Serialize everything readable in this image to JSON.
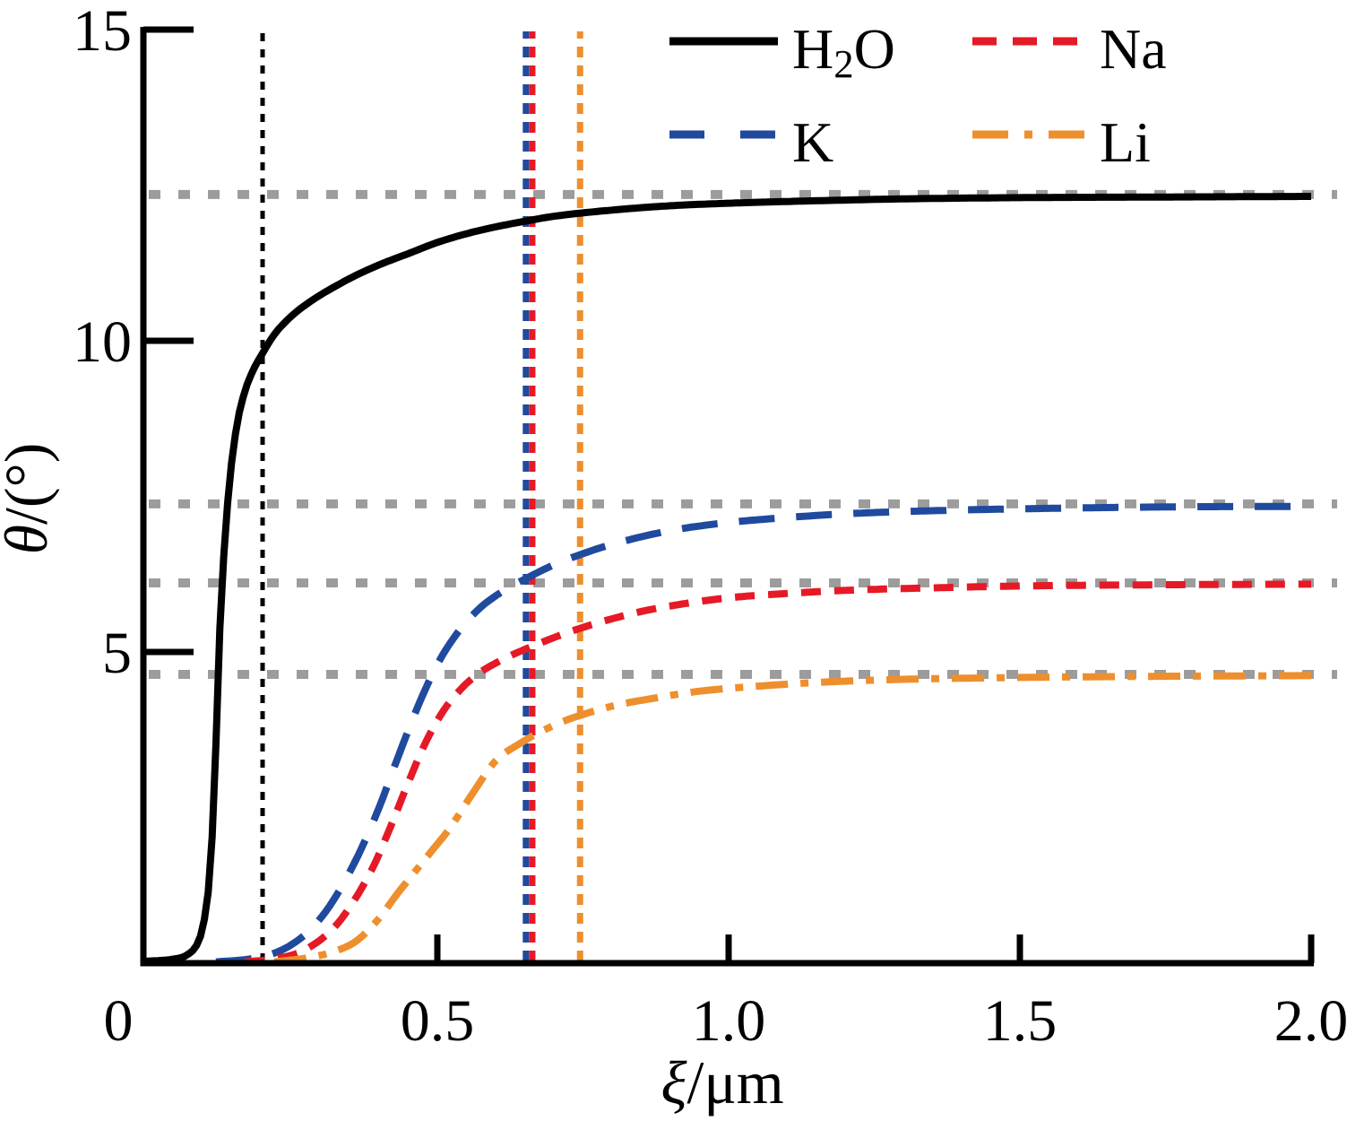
{
  "chart_data": {
    "type": "line",
    "title": "",
    "xlabel_symbol": "ξ",
    "xlabel_rest": "/μm",
    "ylabel_symbol": "θ",
    "ylabel_rest": "/(°)",
    "xlim": [
      0,
      2.0
    ],
    "ylim": [
      0,
      15
    ],
    "x_ticks": [
      {
        "value": 0,
        "label": "0"
      },
      {
        "value": 0.5,
        "label": "0.5"
      },
      {
        "value": 1.0,
        "label": "1.0"
      },
      {
        "value": 1.5,
        "label": "1.5"
      },
      {
        "value": 2.0,
        "label": "2.0"
      }
    ],
    "y_ticks": [
      {
        "value": 5,
        "label": "5"
      },
      {
        "value": 10,
        "label": "10"
      },
      {
        "value": 15,
        "label": "15"
      }
    ],
    "grid": "horizontal dotted saturation guides only",
    "legend_position": "top-inside, two columns",
    "colors": {
      "H2O": "#000000",
      "K": "#1f4a9e",
      "Na": "#e61926",
      "Li": "#ee8f2d",
      "guide_gray": "#9c9c9c"
    },
    "series": [
      {
        "name": "H2O",
        "line_style": "solid",
        "color": "#000000",
        "points": [
          [
            0,
            0.03
          ],
          [
            0.05,
            0.07
          ],
          [
            0.07,
            0.13
          ],
          [
            0.09,
            0.35
          ],
          [
            0.1,
            0.7
          ],
          [
            0.11,
            1.5
          ],
          [
            0.118,
            3.0
          ],
          [
            0.125,
            5.0
          ],
          [
            0.133,
            6.5
          ],
          [
            0.143,
            7.7
          ],
          [
            0.155,
            8.6
          ],
          [
            0.17,
            9.2
          ],
          [
            0.185,
            9.55
          ],
          [
            0.2,
            9.8
          ],
          [
            0.22,
            10.1
          ],
          [
            0.25,
            10.4
          ],
          [
            0.285,
            10.65
          ],
          [
            0.32,
            10.85
          ],
          [
            0.36,
            11.05
          ],
          [
            0.4,
            11.22
          ],
          [
            0.45,
            11.4
          ],
          [
            0.5,
            11.58
          ],
          [
            0.55,
            11.72
          ],
          [
            0.6,
            11.83
          ],
          [
            0.65,
            11.92
          ],
          [
            0.7,
            12.0
          ],
          [
            0.8,
            12.1
          ],
          [
            0.9,
            12.17
          ],
          [
            1.0,
            12.21
          ],
          [
            1.15,
            12.25
          ],
          [
            1.3,
            12.28
          ],
          [
            1.5,
            12.3
          ],
          [
            1.75,
            12.31
          ],
          [
            2.0,
            12.32
          ]
        ]
      },
      {
        "name": "K",
        "line_style": "long-dash",
        "color": "#1f4a9e",
        "points": [
          [
            0.12,
            0.02
          ],
          [
            0.18,
            0.07
          ],
          [
            0.22,
            0.16
          ],
          [
            0.25,
            0.3
          ],
          [
            0.28,
            0.52
          ],
          [
            0.31,
            0.85
          ],
          [
            0.34,
            1.3
          ],
          [
            0.37,
            1.85
          ],
          [
            0.4,
            2.5
          ],
          [
            0.43,
            3.25
          ],
          [
            0.47,
            4.2
          ],
          [
            0.5,
            4.8
          ],
          [
            0.53,
            5.25
          ],
          [
            0.57,
            5.68
          ],
          [
            0.6,
            5.9
          ],
          [
            0.63,
            6.07
          ],
          [
            0.65,
            6.17
          ],
          [
            0.7,
            6.4
          ],
          [
            0.75,
            6.58
          ],
          [
            0.8,
            6.73
          ],
          [
            0.9,
            6.95
          ],
          [
            1.0,
            7.08
          ],
          [
            1.1,
            7.16
          ],
          [
            1.2,
            7.22
          ],
          [
            1.35,
            7.27
          ],
          [
            1.5,
            7.3
          ],
          [
            1.75,
            7.33
          ],
          [
            2.0,
            7.34
          ]
        ]
      },
      {
        "name": "Na",
        "line_style": "short-dash",
        "color": "#e61926",
        "points": [
          [
            0.17,
            0.02
          ],
          [
            0.22,
            0.07
          ],
          [
            0.26,
            0.16
          ],
          [
            0.3,
            0.38
          ],
          [
            0.33,
            0.65
          ],
          [
            0.36,
            1.05
          ],
          [
            0.39,
            1.55
          ],
          [
            0.42,
            2.2
          ],
          [
            0.45,
            2.9
          ],
          [
            0.48,
            3.55
          ],
          [
            0.51,
            4.05
          ],
          [
            0.54,
            4.4
          ],
          [
            0.57,
            4.65
          ],
          [
            0.6,
            4.82
          ],
          [
            0.63,
            4.96
          ],
          [
            0.66,
            5.08
          ],
          [
            0.72,
            5.3
          ],
          [
            0.78,
            5.48
          ],
          [
            0.85,
            5.65
          ],
          [
            0.92,
            5.77
          ],
          [
            1.0,
            5.87
          ],
          [
            1.1,
            5.94
          ],
          [
            1.2,
            5.99
          ],
          [
            1.35,
            6.03
          ],
          [
            1.5,
            6.06
          ],
          [
            1.75,
            6.08
          ],
          [
            2.0,
            6.09
          ]
        ]
      },
      {
        "name": "Li",
        "line_style": "dash-dot",
        "color": "#ee8f2d",
        "points": [
          [
            0.22,
            0.02
          ],
          [
            0.28,
            0.09
          ],
          [
            0.32,
            0.18
          ],
          [
            0.36,
            0.35
          ],
          [
            0.4,
            0.72
          ],
          [
            0.43,
            1.1
          ],
          [
            0.46,
            1.45
          ],
          [
            0.49,
            1.8
          ],
          [
            0.52,
            2.15
          ],
          [
            0.56,
            2.72
          ],
          [
            0.6,
            3.25
          ],
          [
            0.64,
            3.52
          ],
          [
            0.68,
            3.73
          ],
          [
            0.72,
            3.9
          ],
          [
            0.745,
            3.98
          ],
          [
            0.8,
            4.13
          ],
          [
            0.88,
            4.27
          ],
          [
            0.95,
            4.37
          ],
          [
            1.05,
            4.45
          ],
          [
            1.15,
            4.51
          ],
          [
            1.3,
            4.56
          ],
          [
            1.5,
            4.59
          ],
          [
            1.75,
            4.61
          ],
          [
            2.0,
            4.62
          ]
        ]
      }
    ],
    "saturation_guides": [
      {
        "series": "H2O",
        "theta": 12.35
      },
      {
        "series": "K",
        "theta": 7.38
      },
      {
        "series": "Na",
        "theta": 6.11
      },
      {
        "series": "Li",
        "theta": 4.64
      }
    ],
    "characteristic_vlines": [
      {
        "series": "H2O",
        "xi": 0.2,
        "color": "#000000"
      },
      {
        "series": "K",
        "xi": 0.652,
        "color": "#1f4a9e"
      },
      {
        "series": "Na",
        "xi": 0.663,
        "color": "#e61926"
      },
      {
        "series": "Li",
        "xi": 0.745,
        "color": "#ee8f2d"
      }
    ]
  },
  "legend": {
    "entries": [
      {
        "id": "H2O",
        "col": 0,
        "row": 0,
        "color": "#000000",
        "line_style": "solid",
        "parts": [
          {
            "t": "H"
          },
          {
            "t": "2",
            "sub": true
          },
          {
            "t": "O"
          }
        ]
      },
      {
        "id": "Na",
        "col": 1,
        "row": 0,
        "color": "#e61926",
        "line_style": "short-dash",
        "parts": [
          {
            "t": "Na"
          }
        ]
      },
      {
        "id": "K",
        "col": 0,
        "row": 1,
        "color": "#1f4a9e",
        "line_style": "long-dash",
        "parts": [
          {
            "t": "K"
          }
        ]
      },
      {
        "id": "Li",
        "col": 1,
        "row": 1,
        "color": "#ee8f2d",
        "line_style": "dash-dot",
        "parts": [
          {
            "t": "Li"
          }
        ]
      }
    ]
  },
  "axes_text": {
    "x_title_symbol": "ξ",
    "x_title_rest": "/μm",
    "y_title_symbol": "θ",
    "y_title_rest": "/(°)"
  }
}
